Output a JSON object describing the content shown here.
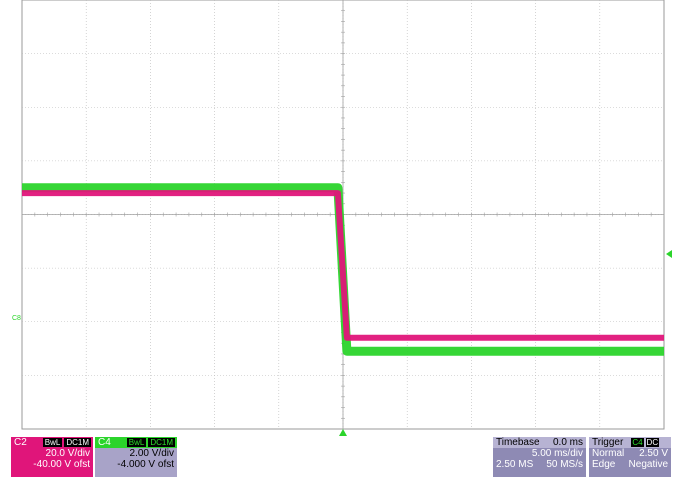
{
  "channels": {
    "c2": {
      "name": "C2",
      "bwl": "BwL",
      "coupling": "DC1M",
      "scale": "20.0 V/div",
      "offset": "-40.00 V ofst",
      "color": "#e0157a"
    },
    "c4": {
      "name": "C4",
      "bwl": "BwL",
      "coupling": "DC1M",
      "scale": "2.00 V/div",
      "offset": "-4.000 V ofst",
      "color": "#2bd42b"
    }
  },
  "timebase": {
    "label": "Timebase",
    "delay": "0.0 ms",
    "scale": "5.00 ms/div",
    "samples": "2.50 MS",
    "rate": "50 MS/s"
  },
  "trigger": {
    "label": "Trigger",
    "source": "C4",
    "coupling": "DC",
    "mode": "Normal",
    "level": "2.50 V",
    "type": "Edge",
    "slope": "Negative"
  },
  "ground_marker": "C8",
  "chart_data": {
    "type": "line",
    "x_divisions": 10,
    "y_divisions": 8,
    "x_unit": "ms",
    "x_per_div": 5.0,
    "grid": true,
    "series": [
      {
        "name": "C2",
        "y_unit": "V",
        "points": [
          [
            -25,
            0.4
          ],
          [
            -0.4,
            0.4
          ],
          [
            0.3,
            -2.3
          ],
          [
            25,
            -2.3
          ]
        ]
      },
      {
        "name": "C4",
        "y_unit": "V",
        "points": [
          [
            -25,
            0.5
          ],
          [
            -0.4,
            0.5
          ],
          [
            0.3,
            -2.55
          ],
          [
            25,
            -2.55
          ]
        ]
      }
    ]
  }
}
